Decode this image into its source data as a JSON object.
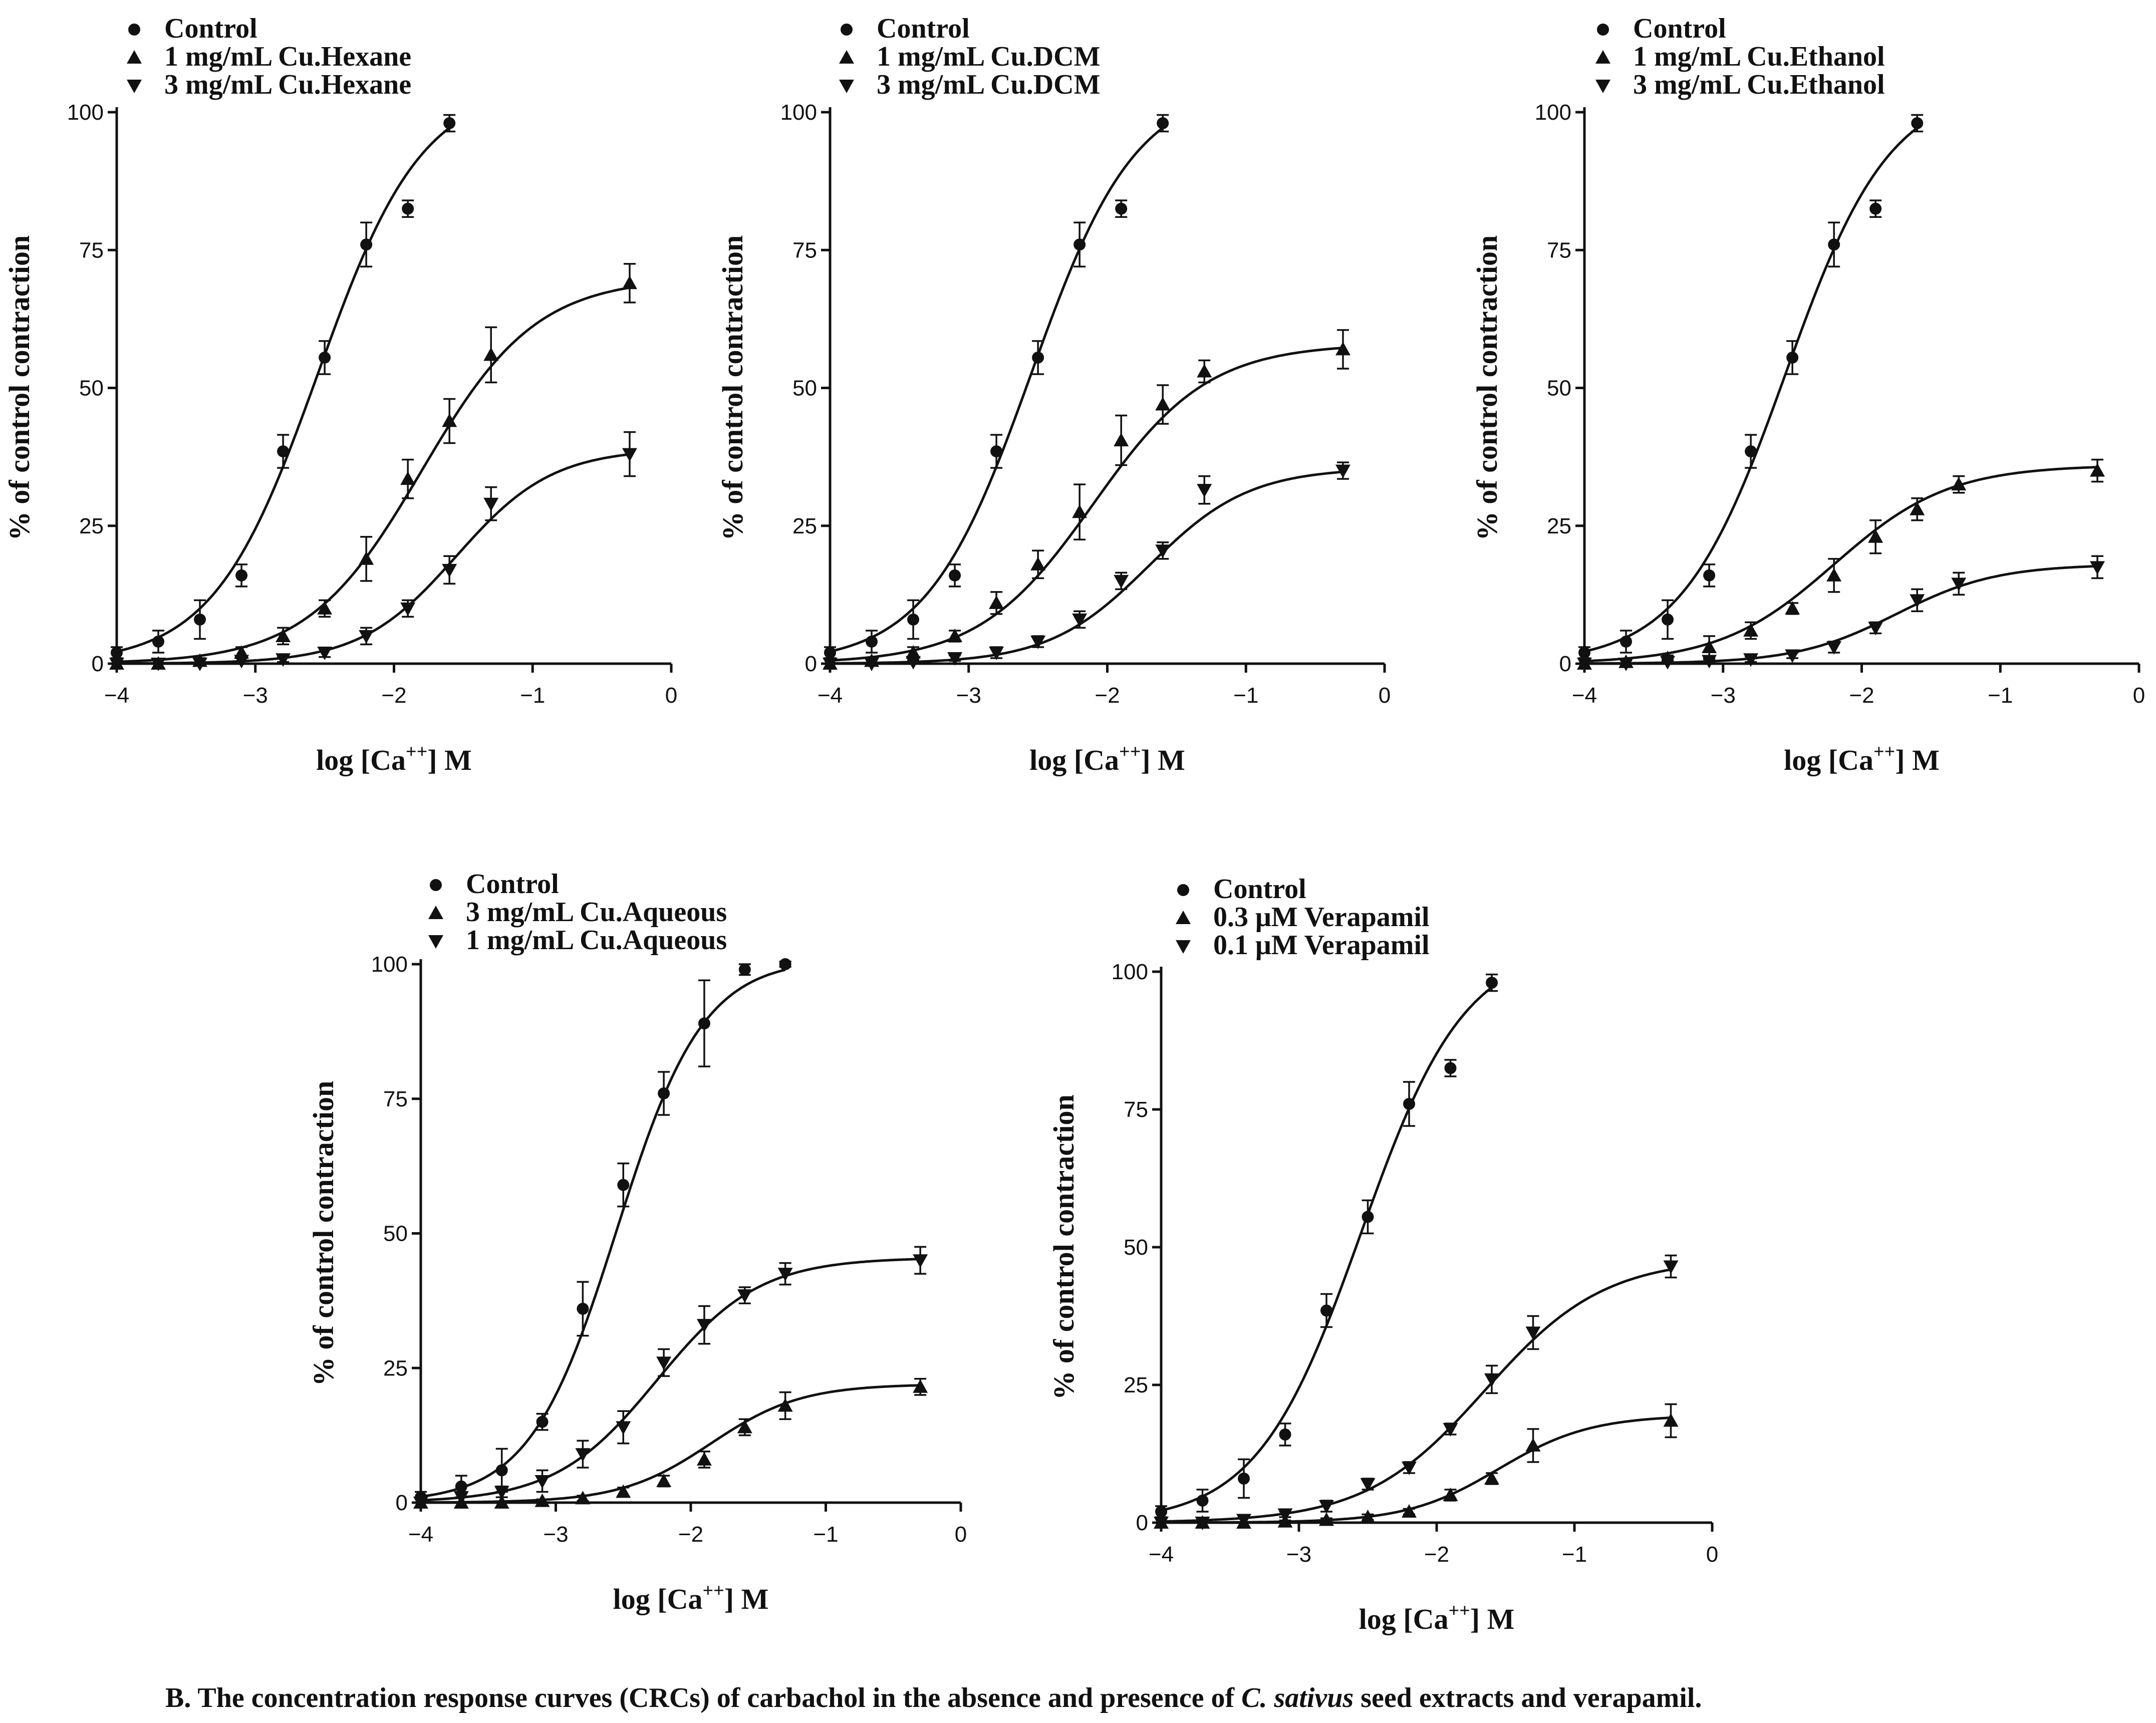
{
  "caption": {
    "prefix": "B. The concentration response curves (CRCs) of carbachol in the absence and presence of ",
    "species": "C. sativus",
    "suffix": " seed  extracts and verapamil."
  },
  "chart_data": [
    {
      "type": "scatter",
      "title": "",
      "xlabel": "log [Ca",
      "xlabel_sup": "++",
      "xlabel_tail": "] M",
      "ylabel": "% of control contraction",
      "xlim": [
        -4,
        0
      ],
      "ylim": [
        0,
        100
      ],
      "xticks": [
        -4,
        -3,
        -2,
        -1,
        0
      ],
      "xtick_labels": [
        "−4",
        "−3",
        "−2",
        "−1",
        "0"
      ],
      "yticks": [
        0,
        25,
        50,
        75,
        100
      ],
      "ytick_labels": [
        "0",
        "25",
        "50",
        "75",
        "100"
      ],
      "legend_position": "top-left",
      "series": [
        {
          "name": "Control",
          "marker": "circle",
          "x": [
            -4,
            -3.7,
            -3.4,
            -3.1,
            -2.8,
            -2.5,
            -2.2,
            -1.9,
            -1.6
          ],
          "y": [
            2,
            4,
            8,
            16,
            38.5,
            55.5,
            76,
            82.5,
            98
          ],
          "err": [
            1,
            2,
            3.5,
            2,
            3,
            3,
            4,
            1.5,
            1.5
          ],
          "fit": {
            "bottom": 0,
            "top": 105,
            "logec50": -2.55,
            "hill": 1.15,
            "xmax": -1.6
          }
        },
        {
          "name": "1 mg/mL Cu.Hexane",
          "marker": "triangle-up",
          "x": [
            -4,
            -3.7,
            -3.4,
            -3.1,
            -2.8,
            -2.5,
            -2.2,
            -1.9,
            -1.6,
            -1.3,
            -0.3
          ],
          "y": [
            0,
            0,
            0.5,
            2,
            5,
            10,
            19,
            33.5,
            44,
            56,
            69
          ],
          "err": [
            0,
            0,
            0.5,
            1,
            1.5,
            1.5,
            4,
            3.5,
            4,
            5,
            3.5
          ],
          "fit": {
            "bottom": 0,
            "top": 70,
            "logec50": -1.8,
            "hill": 1.05,
            "xmax": -0.3
          }
        },
        {
          "name": "3 mg/mL Cu.Hexane",
          "marker": "triangle-down",
          "x": [
            -4,
            -3.7,
            -3.4,
            -3.1,
            -2.8,
            -2.5,
            -2.2,
            -1.9,
            -1.6,
            -1.3,
            -0.3
          ],
          "y": [
            0,
            0,
            0,
            0.5,
            0.8,
            2,
            5,
            10,
            17,
            29,
            38
          ],
          "err": [
            0,
            0,
            0,
            0.5,
            0.5,
            0.8,
            1.5,
            1.5,
            2.5,
            3,
            4
          ],
          "fit": {
            "bottom": 0,
            "top": 39,
            "logec50": -1.55,
            "hill": 1.25,
            "xmax": -0.3
          }
        }
      ],
      "legend": [
        "Control",
        "1 mg/mL Cu.Hexane",
        "3 mg/mL Cu.Hexane"
      ]
    },
    {
      "type": "scatter",
      "title": "",
      "xlabel": "log [Ca",
      "xlabel_sup": "++",
      "xlabel_tail": "] M",
      "ylabel": "% of control contraction",
      "xlim": [
        -4,
        0
      ],
      "ylim": [
        0,
        100
      ],
      "xticks": [
        -4,
        -3,
        -2,
        -1,
        0
      ],
      "xtick_labels": [
        "−4",
        "−3",
        "−2",
        "−1",
        "0"
      ],
      "yticks": [
        0,
        25,
        50,
        75,
        100
      ],
      "ytick_labels": [
        "0",
        "25",
        "50",
        "75",
        "100"
      ],
      "legend_position": "top-left",
      "series": [
        {
          "name": "Control",
          "marker": "circle",
          "x": [
            -4,
            -3.7,
            -3.4,
            -3.1,
            -2.8,
            -2.5,
            -2.2,
            -1.9,
            -1.6
          ],
          "y": [
            2,
            4,
            8,
            16,
            38.5,
            55.5,
            76,
            82.5,
            98
          ],
          "err": [
            1,
            2,
            3.5,
            2,
            3,
            3,
            4,
            1.5,
            1.5
          ],
          "fit": {
            "bottom": 0,
            "top": 105,
            "logec50": -2.55,
            "hill": 1.15,
            "xmax": -1.6
          }
        },
        {
          "name": "1 mg/mL Cu.DCM",
          "marker": "triangle-up",
          "x": [
            -4,
            -3.7,
            -3.4,
            -3.1,
            -2.8,
            -2.5,
            -2.2,
            -1.9,
            -1.6,
            -1.3,
            -0.3
          ],
          "y": [
            0,
            0.5,
            2,
            5,
            11,
            18,
            27.5,
            40.5,
            47,
            53,
            57
          ],
          "err": [
            0,
            0.5,
            1,
            1,
            2,
            2.5,
            5,
            4.5,
            3.5,
            2,
            3.5
          ],
          "fit": {
            "bottom": 0,
            "top": 58,
            "logec50": -2.1,
            "hill": 1.05,
            "xmax": -0.3
          }
        },
        {
          "name": "3 mg/mL Cu.DCM",
          "marker": "triangle-down",
          "x": [
            -4,
            -3.7,
            -3.4,
            -3.1,
            -2.8,
            -2.5,
            -2.2,
            -1.9,
            -1.6,
            -1.3,
            -0.3
          ],
          "y": [
            0,
            0,
            0.3,
            1,
            2,
            4,
            8,
            15,
            20.5,
            31.5,
            35
          ],
          "err": [
            0,
            0,
            0.3,
            0.5,
            1,
            1,
            1.5,
            1.5,
            1.5,
            2.5,
            1.5
          ],
          "fit": {
            "bottom": 0,
            "top": 35.5,
            "logec50": -1.7,
            "hill": 1.2,
            "xmax": -0.3
          }
        }
      ],
      "legend": [
        "Control",
        "1 mg/mL Cu.DCM",
        "3 mg/mL Cu.DCM"
      ]
    },
    {
      "type": "scatter",
      "title": "",
      "xlabel": "log [Ca",
      "xlabel_sup": "++",
      "xlabel_tail": "] M",
      "ylabel": "% of control contraction",
      "xlim": [
        -4,
        0
      ],
      "ylim": [
        0,
        100
      ],
      "xticks": [
        -4,
        -3,
        -2,
        -1,
        0
      ],
      "xtick_labels": [
        "−4",
        "−3",
        "−2",
        "−1",
        "0"
      ],
      "yticks": [
        0,
        25,
        50,
        75,
        100
      ],
      "ytick_labels": [
        "0",
        "25",
        "50",
        "75",
        "100"
      ],
      "legend_position": "top-left",
      "series": [
        {
          "name": "Control",
          "marker": "circle",
          "x": [
            -4,
            -3.7,
            -3.4,
            -3.1,
            -2.8,
            -2.5,
            -2.2,
            -1.9,
            -1.6
          ],
          "y": [
            2,
            4,
            8,
            16,
            38.5,
            55.5,
            76,
            82.5,
            98
          ],
          "err": [
            1,
            2,
            3.5,
            2,
            3,
            3,
            4,
            1.5,
            1.5
          ],
          "fit": {
            "bottom": 0,
            "top": 105,
            "logec50": -2.55,
            "hill": 1.15,
            "xmax": -1.6
          }
        },
        {
          "name": "1 mg/mL Cu.Ethanol",
          "marker": "triangle-up",
          "x": [
            -4,
            -3.7,
            -3.4,
            -3.1,
            -2.8,
            -2.5,
            -2.2,
            -1.9,
            -1.6,
            -1.3,
            -0.3
          ],
          "y": [
            0,
            0.3,
            1,
            3,
            6,
            10,
            16,
            23,
            28,
            32.5,
            35
          ],
          "err": [
            0,
            0.3,
            0.5,
            2,
            1.5,
            1,
            3,
            3,
            2,
            1.5,
            2
          ],
          "fit": {
            "bottom": 0,
            "top": 36,
            "logec50": -2.2,
            "hill": 1.05,
            "xmax": -0.3
          }
        },
        {
          "name": "3 mg/mL Cu.Ethanol",
          "marker": "triangle-down",
          "x": [
            -4,
            -3.7,
            -3.4,
            -3.1,
            -2.8,
            -2.5,
            -2.2,
            -1.9,
            -1.6,
            -1.3,
            -0.3
          ],
          "y": [
            0,
            0,
            0.3,
            0.5,
            0.8,
            1.5,
            3,
            6.5,
            11.5,
            14.5,
            17.5
          ],
          "err": [
            0,
            0,
            0.3,
            0.3,
            0.5,
            0.5,
            1,
            1,
            2,
            2,
            2
          ],
          "fit": {
            "bottom": 0,
            "top": 18,
            "logec50": -1.75,
            "hill": 1.2,
            "xmax": -0.3
          }
        }
      ],
      "legend": [
        "Control",
        "1 mg/mL Cu.Ethanol",
        "3 mg/mL Cu.Ethanol"
      ]
    },
    {
      "type": "scatter",
      "title": "",
      "xlabel": "log [Ca",
      "xlabel_sup": "++",
      "xlabel_tail": "] M",
      "ylabel": "% of control contraction",
      "xlim": [
        -4,
        0
      ],
      "ylim": [
        0,
        100
      ],
      "xticks": [
        -4,
        -3,
        -2,
        -1,
        0
      ],
      "xtick_labels": [
        "−4",
        "−3",
        "−2",
        "−1",
        "0"
      ],
      "yticks": [
        0,
        25,
        50,
        75,
        100
      ],
      "ytick_labels": [
        "0",
        "25",
        "50",
        "75",
        "100"
      ],
      "legend_position": "top-left",
      "series": [
        {
          "name": "Control",
          "marker": "circle",
          "x": [
            -4,
            -3.7,
            -3.4,
            -3.1,
            -2.8,
            -2.5,
            -2.2,
            -1.9,
            -1.6,
            -1.3
          ],
          "y": [
            1,
            3,
            6,
            15,
            36,
            59,
            76,
            89,
            99,
            100
          ],
          "err": [
            1,
            2,
            4,
            1.5,
            5,
            4,
            4,
            8,
            1,
            0.5
          ],
          "fit": {
            "bottom": 0,
            "top": 101,
            "logec50": -2.55,
            "hill": 1.35,
            "xmax": -1.3
          }
        },
        {
          "name": "3 mg/mL Cu.Aqueous",
          "marker": "triangle-up",
          "x": [
            -4,
            -3.7,
            -3.4,
            -3.1,
            -2.8,
            -2.5,
            -2.2,
            -1.9,
            -1.6,
            -1.3,
            -0.3
          ],
          "y": [
            0,
            0,
            0,
            0.3,
            0.8,
            2,
            4,
            8,
            14,
            18,
            21.5
          ],
          "err": [
            0,
            0,
            0,
            0.3,
            0.5,
            0.8,
            1,
            1.5,
            1.5,
            2.5,
            1.5
          ],
          "fit": {
            "bottom": 0,
            "top": 22,
            "logec50": -1.85,
            "hill": 1.3,
            "xmax": -0.3
          }
        },
        {
          "name": "1 mg/mL Cu.Aqueous",
          "marker": "triangle-down",
          "x": [
            -4,
            -3.7,
            -3.4,
            -3.1,
            -2.8,
            -2.5,
            -2.2,
            -1.9,
            -1.6,
            -1.3,
            -0.3
          ],
          "y": [
            0,
            1,
            2,
            4,
            9,
            14,
            26,
            33,
            38.5,
            42.5,
            45
          ],
          "err": [
            0,
            1,
            1,
            2,
            2.5,
            3,
            2.5,
            3.5,
            1.5,
            2,
            2.5
          ],
          "fit": {
            "bottom": 0,
            "top": 45.5,
            "logec50": -2.25,
            "hill": 1.15,
            "xmax": -0.3
          }
        }
      ],
      "legend": [
        "Control",
        "3 mg/mL Cu.Aqueous",
        "1 mg/mL Cu.Aqueous"
      ]
    },
    {
      "type": "scatter",
      "title": "",
      "xlabel": "log [Ca",
      "xlabel_sup": "++",
      "xlabel_tail": "] M",
      "ylabel": "% of control contraction",
      "xlim": [
        -4,
        0
      ],
      "ylim": [
        0,
        100
      ],
      "xticks": [
        -4,
        -3,
        -2,
        -1,
        0
      ],
      "xtick_labels": [
        "−4",
        "−3",
        "−2",
        "−1",
        "0"
      ],
      "yticks": [
        0,
        25,
        50,
        75,
        100
      ],
      "ytick_labels": [
        "0",
        "25",
        "50",
        "75",
        "100"
      ],
      "legend_position": "top-left",
      "series": [
        {
          "name": "Control",
          "marker": "circle",
          "x": [
            -4,
            -3.7,
            -3.4,
            -3.1,
            -2.8,
            -2.5,
            -2.2,
            -1.9,
            -1.6
          ],
          "y": [
            2,
            4,
            8,
            16,
            38.5,
            55.5,
            76,
            82.5,
            98
          ],
          "err": [
            1,
            2,
            3.5,
            2,
            3,
            3,
            4,
            1.5,
            1.5
          ],
          "fit": {
            "bottom": 0,
            "top": 105,
            "logec50": -2.55,
            "hill": 1.15,
            "xmax": -1.6
          }
        },
        {
          "name": "0.3 μM Verapamil",
          "marker": "triangle-up",
          "x": [
            -4,
            -3.7,
            -3.4,
            -3.1,
            -2.8,
            -2.5,
            -2.2,
            -1.9,
            -1.6,
            -1.3,
            -0.3
          ],
          "y": [
            0,
            0,
            0,
            0.2,
            0.5,
            1,
            2,
            5,
            8,
            14,
            18.5
          ],
          "err": [
            0,
            0,
            0,
            0.2,
            0.3,
            0.5,
            0.5,
            1,
            1,
            3,
            3
          ],
          "fit": {
            "bottom": 0,
            "top": 19.5,
            "logec50": -1.55,
            "hill": 1.3,
            "xmax": -0.3
          }
        },
        {
          "name": "0.1 μM Verapamil",
          "marker": "triangle-down",
          "x": [
            -4,
            -3.7,
            -3.4,
            -3.1,
            -2.8,
            -2.5,
            -2.2,
            -1.9,
            -1.6,
            -1.3,
            -0.3
          ],
          "y": [
            0,
            0,
            0.5,
            1.5,
            3,
            7,
            10,
            17,
            26,
            34.5,
            46.5
          ],
          "err": [
            0,
            0,
            0.5,
            0.5,
            1,
            1,
            1,
            1,
            2.5,
            3,
            2
          ],
          "fit": {
            "bottom": 0,
            "top": 48,
            "logec50": -1.65,
            "hill": 1.0,
            "xmax": -0.3
          }
        }
      ],
      "legend": [
        "Control",
        "0.3 μM Verapamil",
        "0.1 μM Verapamil"
      ]
    }
  ]
}
